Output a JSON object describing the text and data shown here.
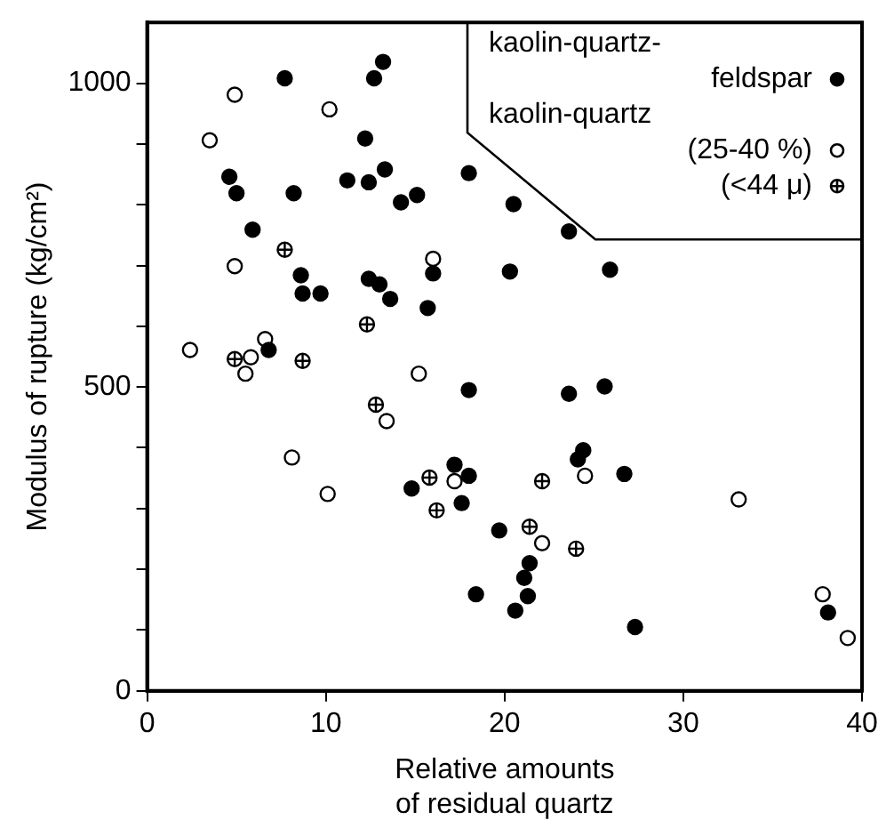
{
  "chart_data": {
    "type": "scatter",
    "xlabel": "Relative amounts of residual quartz",
    "ylabel": "Modulus of rupture (kg/cm²)",
    "xlim": [
      0,
      40
    ],
    "xticks": [
      0,
      10,
      20,
      30,
      40
    ],
    "ylim": [
      0,
      1100
    ],
    "yticks": [
      0,
      {
        "value": 100,
        "label": null
      },
      {
        "value": 200,
        "label": null
      },
      {
        "value": 300,
        "label": null
      },
      {
        "value": 400,
        "label": null
      },
      500,
      {
        "value": 600,
        "label": null
      },
      {
        "value": 700,
        "label": null
      },
      {
        "value": 800,
        "label": null
      },
      {
        "value": 900,
        "label": null
      },
      1000
    ],
    "grid": false,
    "legend": "top right",
    "marker": "circle",
    "series": [
      {
        "name": "kaolin-quartz-feldspar",
        "color": "#000000",
        "x": [
          13.2,
          12.7,
          7.7,
          12.2,
          4.6,
          5.0,
          8.2,
          11.2,
          12.4,
          13.3,
          14.2,
          15.1,
          18.0,
          20.5,
          5.9,
          8.6,
          12.4,
          13.0,
          13.6,
          8.7,
          9.7,
          15.7,
          16.0,
          20.3,
          6.8,
          18.0,
          23.6,
          25.9,
          23.6,
          25.6,
          14.8,
          17.2,
          18.0,
          17.6,
          19.7,
          18.4,
          20.6,
          24.4,
          24.1,
          26.7,
          21.4,
          21.1,
          21.3,
          27.3,
          38.1
        ],
        "values": [
          1035,
          1008,
          1008,
          909,
          846,
          819,
          819,
          840,
          837,
          858,
          804,
          816,
          852,
          801,
          759,
          684,
          678,
          669,
          645,
          654,
          654,
          630,
          687,
          690,
          561,
          495,
          756,
          693,
          489,
          501,
          333,
          372,
          354,
          309,
          264,
          159,
          132,
          396,
          381,
          357,
          210,
          186,
          156,
          105,
          129
        ]
      },
      {
        "name": "kaolin-quartz (25-40 %)",
        "color": "#000000",
        "x": [
          4.9,
          3.5,
          10.2,
          4.9,
          16.0,
          2.4,
          5.8,
          5.5,
          6.6,
          15.2,
          8.1,
          10.1,
          13.4,
          17.2,
          24.5,
          33.1,
          22.1,
          37.8,
          39.2
        ],
        "values": [
          981,
          906,
          957,
          699,
          711,
          561,
          549,
          522,
          579,
          522,
          384,
          324,
          444,
          345,
          354,
          315,
          243,
          159,
          87
        ]
      },
      {
        "name": "(<44 μ)",
        "color": "#000000",
        "x": [
          7.7,
          12.3,
          4.9,
          8.7,
          12.8,
          15.8,
          16.2,
          22.1,
          21.4,
          24.0
        ],
        "values": [
          726,
          603,
          546,
          543,
          471,
          351,
          297,
          345,
          270,
          234
        ]
      }
    ]
  }
}
